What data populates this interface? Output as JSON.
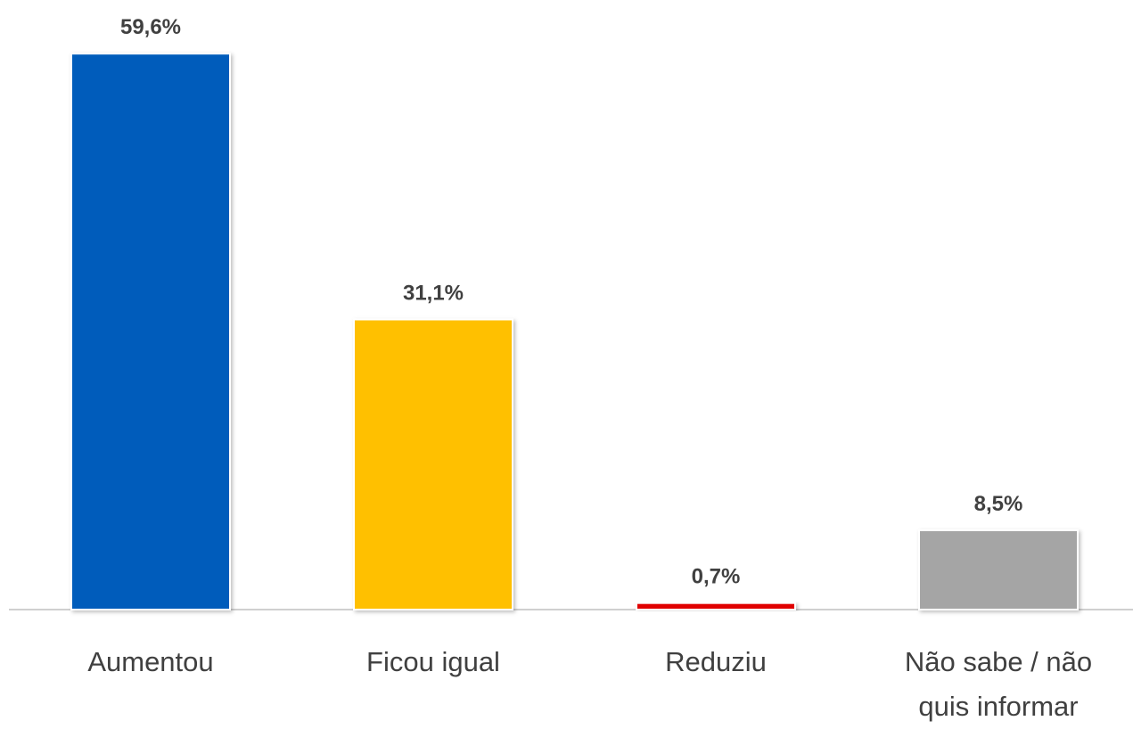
{
  "chart_data": {
    "type": "bar",
    "categories": [
      "Aumentou",
      "Ficou igual",
      "Reduziu",
      "Não sabe / não quis informar"
    ],
    "values": [
      59.6,
      31.1,
      0.7,
      8.5
    ],
    "value_labels": [
      "59,6%",
      "31,1%",
      "0,7%",
      "8,5%"
    ],
    "colors": [
      "#005bbb",
      "#ffc000",
      "#e00000",
      "#a5a5a5"
    ],
    "ylim": [
      0,
      60
    ]
  }
}
